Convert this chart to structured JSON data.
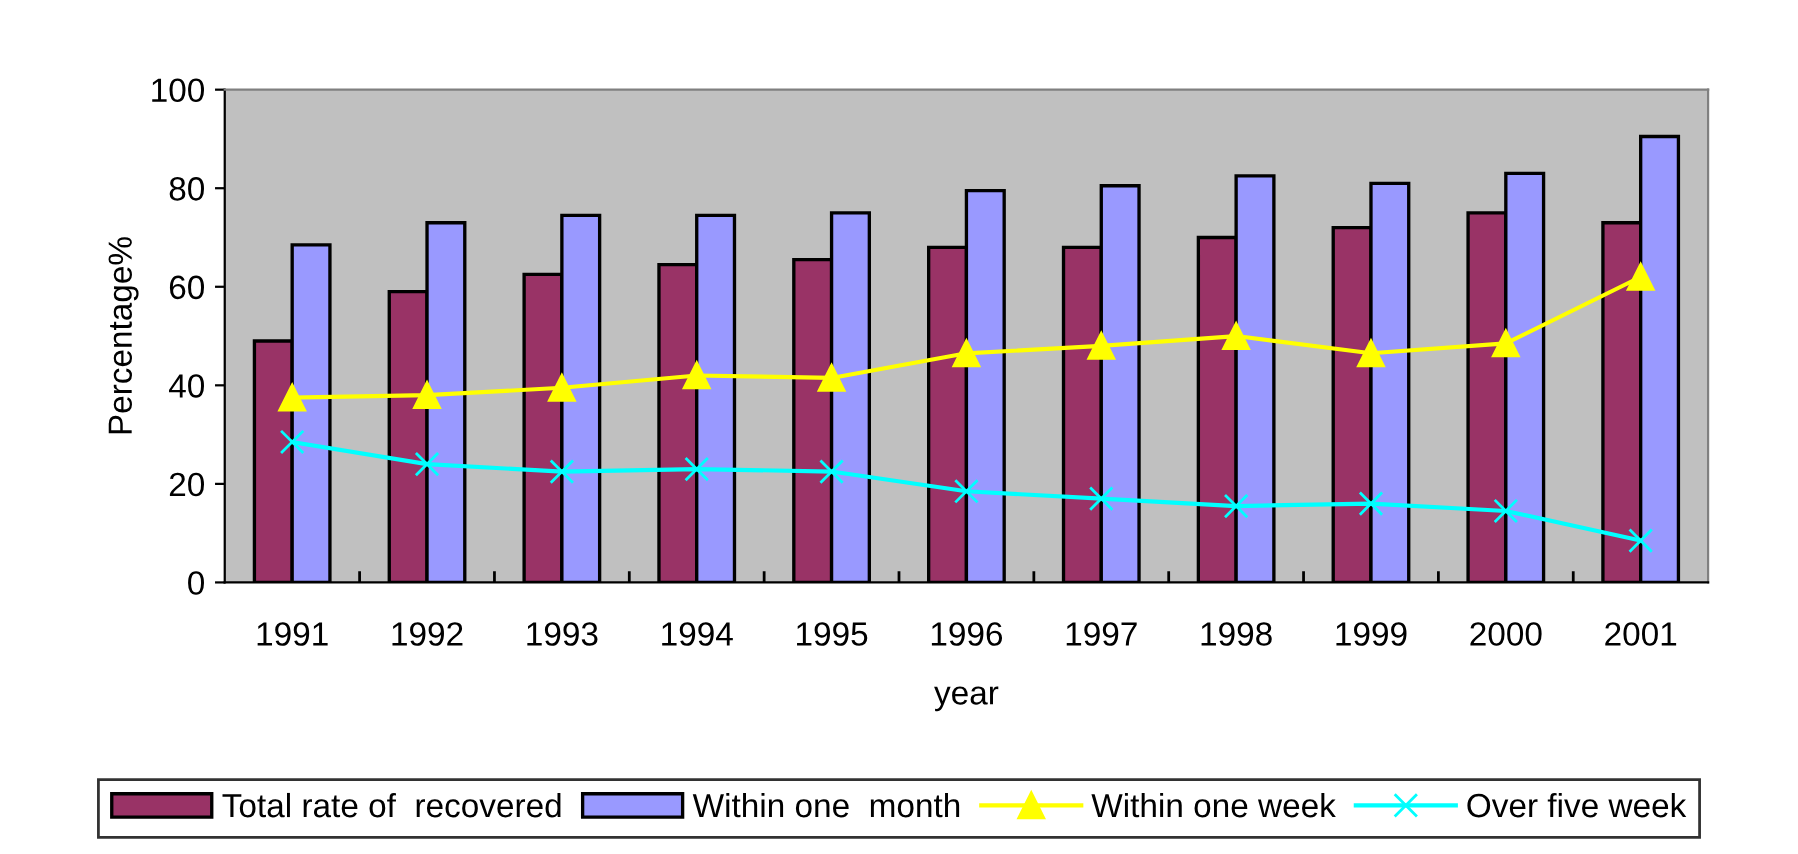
{
  "chart_data": {
    "type": "bar",
    "xlabel": "year",
    "ylabel": "Percentage%",
    "categories": [
      "1991",
      "1992",
      "1993",
      "1994",
      "1995",
      "1996",
      "1997",
      "1998",
      "1999",
      "2000",
      "2001"
    ],
    "series": [
      {
        "name": "Total rate of  recovered",
        "color": "#993366",
        "values": [
          49,
          59,
          62.5,
          64.5,
          65.5,
          68,
          68,
          70,
          72,
          75,
          73
        ]
      },
      {
        "name": "Within one  month",
        "color": "#9999ff",
        "values": [
          68.5,
          73,
          74.5,
          74.5,
          75,
          79.5,
          80.5,
          82.5,
          81,
          83,
          90.5
        ]
      },
      {
        "name": "Within one week",
        "type": "line",
        "marker": "triangle",
        "color": "#ffff00",
        "values": [
          37.5,
          38,
          39.5,
          42,
          41.5,
          46.5,
          48,
          50,
          46.5,
          48.5,
          62
        ]
      },
      {
        "name": "Over five week",
        "type": "line",
        "marker": "cross",
        "color": "#00ffff",
        "values": [
          28.5,
          24,
          22.5,
          23,
          22.5,
          18.5,
          17,
          15.5,
          16,
          14.5,
          8.5
        ]
      }
    ],
    "ylim": [
      0,
      100
    ],
    "yticks": [
      0,
      20,
      40,
      60,
      80,
      100
    ],
    "grid": false,
    "legend": "bottom"
  }
}
